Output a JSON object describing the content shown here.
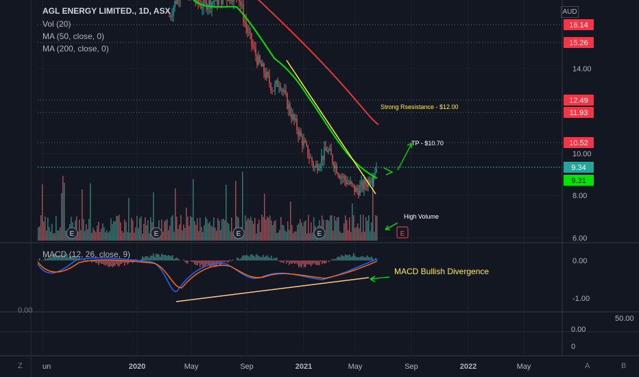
{
  "header": {
    "title": "AGL ENERGY LIMITED., 1D, ASX",
    "indicators": [
      "Vol (20)",
      "MA (50, close, 0)",
      "MA (200, close, 0)"
    ],
    "currency": "AUD"
  },
  "macd_label": "MACD (12, 26, close, 9)",
  "lower_left_value": "0.00",
  "lower_pane_labels": [
    "50.00",
    "0.00",
    "0"
  ],
  "footer": {
    "left": "Z",
    "right_a": "A",
    "right_b": "B"
  },
  "chart_data": {
    "type": "candlestick",
    "x_ticks": [
      "un",
      "2020",
      "May",
      "Sep",
      "2021",
      "May",
      "Sep",
      "2022",
      "May"
    ],
    "y_ticks_price": [
      "14.00",
      "10.00",
      "8.00",
      "6.00"
    ],
    "price_levels": [
      {
        "label": "16.14",
        "value": 16.14,
        "color": "#f23645"
      },
      {
        "label": "15.26",
        "value": 15.26,
        "color": "#f23645"
      },
      {
        "label": "12.49",
        "value": 12.49,
        "color": "#f23645"
      },
      {
        "label": "11.93",
        "value": 11.93,
        "color": "#f23645"
      },
      {
        "label": "10.52",
        "value": 10.52,
        "color": "#f23645"
      },
      {
        "label": "9.34",
        "value": 9.34,
        "color": "#26a69a"
      },
      {
        "label": "9.31",
        "value": 9.31,
        "color": "#00e600"
      }
    ],
    "y_ticks_macd": [
      "0.00",
      "-1.00"
    ],
    "annotations": {
      "resistance": "Strong Rsesistance - $12.00",
      "tp": "TP - $10.70",
      "high_volume": "High Volume",
      "macd_div": "MACD Bullish Divergence"
    },
    "earnings_marker": "E",
    "colors": {
      "up": "#26a69a",
      "down": "#ef5350",
      "ma50": "#00e600",
      "ma200": "#e53935",
      "trend": "#ffeb3b"
    }
  }
}
